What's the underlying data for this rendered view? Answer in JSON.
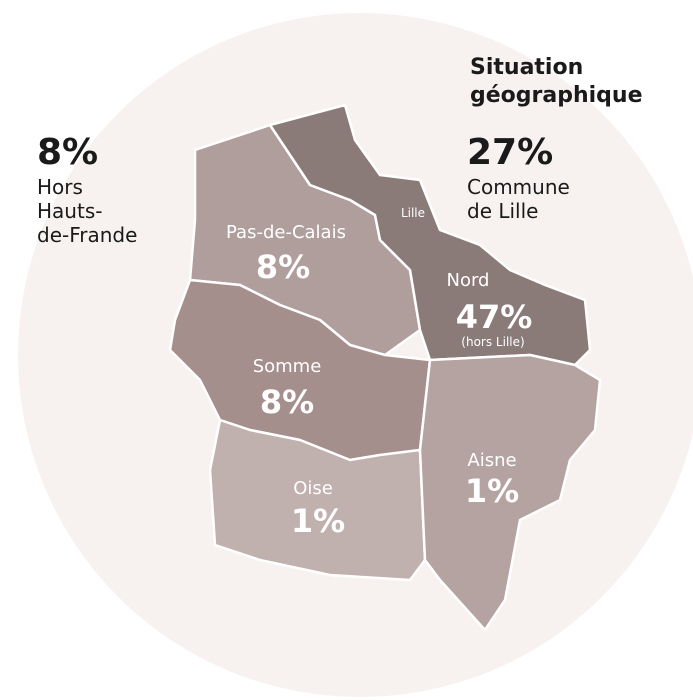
{
  "title_lines": [
    "Situation",
    "géographique"
  ],
  "outside": {
    "value": "8%",
    "label_lines": [
      "Hors",
      "Hauts-",
      "de-Frande"
    ]
  },
  "lille": {
    "value": "27%",
    "label_lines": [
      "Commune",
      "de Lille"
    ],
    "map_label": "Lille"
  },
  "regions": [
    {
      "name": "Pas-de-Calais",
      "value": "8%"
    },
    {
      "name": "Nord",
      "value": "47%",
      "note": "(hors Lille)"
    },
    {
      "name": "Somme",
      "value": "8%"
    },
    {
      "name": "Oise",
      "value": "1%"
    },
    {
      "name": "Aisne",
      "value": "1%"
    }
  ]
}
